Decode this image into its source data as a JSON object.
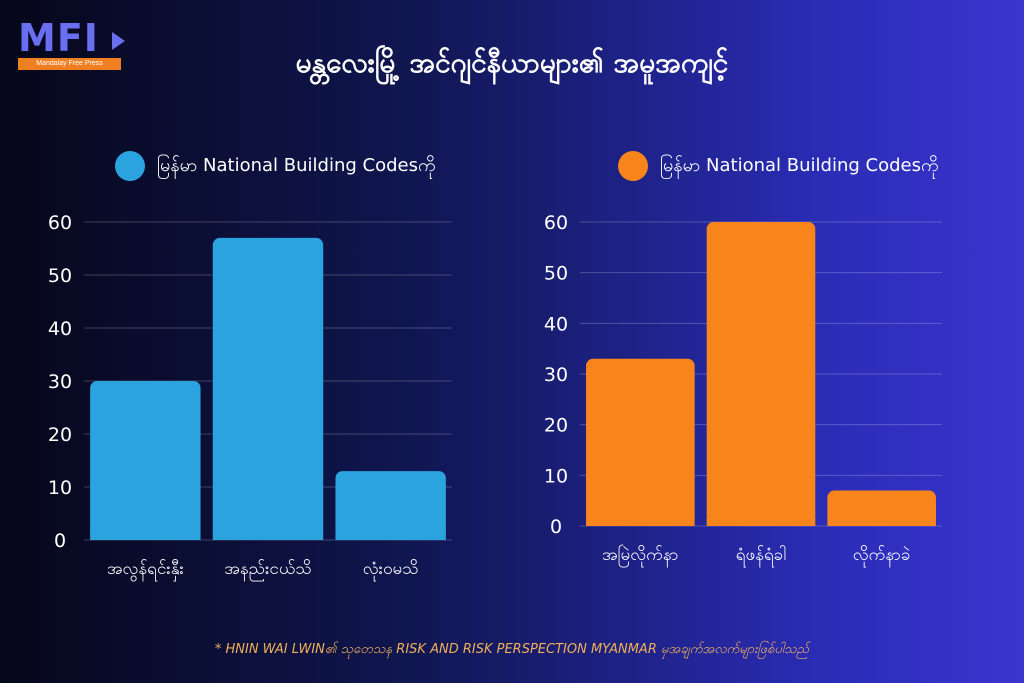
{
  "logo": {
    "text": "MFI",
    "tagline": "Mandalay Free Press",
    "icon": "play-arrow-icon"
  },
  "title": "မန္တလေးမြို့ အင်ဂျင်နီယာများ၏ အမူအကျင့်",
  "footnote": "* HNIN WAI LWIN၏ သုတေသန RISK AND RISK PERSPECTION MYANMAR မှအချက်အလက်များဖြစ်ပါသည်",
  "chart_data": [
    {
      "type": "bar",
      "legend": "မြန်မာ National Building Codesကို",
      "color": "#2aa3df",
      "categories": [
        "အလွန်ရင်းနှီး",
        "အနည်းငယ်သိ",
        "လုံးဝမသိ"
      ],
      "values": [
        30,
        57,
        13
      ],
      "yticks": [
        0,
        10,
        20,
        30,
        40,
        50,
        60
      ],
      "ylim": [
        0,
        60
      ],
      "grid": true
    },
    {
      "type": "bar",
      "legend": "မြန်မာ National Building Codesကို",
      "color": "#f7851c",
      "categories": [
        "အမြဲလိုက်နာ",
        "ရံဖန်ရံခါ",
        "လိုက်နာခဲ"
      ],
      "values": [
        33,
        60,
        7
      ],
      "yticks": [
        0,
        10,
        20,
        30,
        40,
        50,
        60
      ],
      "ylim": [
        0,
        60
      ],
      "grid": true
    }
  ]
}
